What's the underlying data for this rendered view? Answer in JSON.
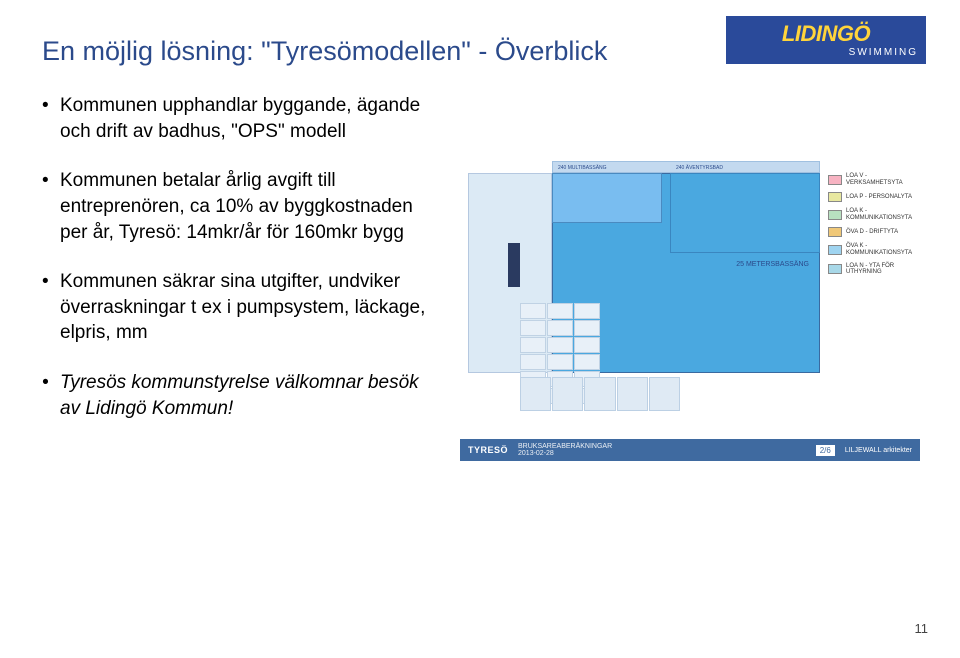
{
  "title": "En möjlig lösning: \"Tyresömodellen\" - Överblick",
  "logo": {
    "main": "LIDINGÖ",
    "sub": "SWIMMING"
  },
  "bullets": [
    {
      "text": "Kommunen upphandlar byggande, ägande och drift av badhus, \"OPS\" modell",
      "italic": false
    },
    {
      "text": "Kommunen betalar årlig avgift till entreprenören, ca 10% av byggkostnaden per år, Tyresö: 14mkr/år för 160mkr bygg",
      "italic": false
    },
    {
      "text": "Kommunen säkrar sina utgifter, undviker överraskningar t ex i pumpsystem, läckage, elpris, mm",
      "italic": false
    },
    {
      "text": "Tyresös kommunstyrelse välkomnar besök av Lidingö Kommun!",
      "italic": true
    }
  ],
  "floorplan": {
    "top_left_label": "240\nMULTIBASSÄNG",
    "top_right_label": "240\nÄVENTYRSBAD",
    "pool_label": "25 METERSBASSÄNG",
    "footer": {
      "project": "TYRESÖ",
      "doc": "BRUKSAREABERÄKNINGAR",
      "date": "2013-02-28",
      "page": "2/6",
      "architect": "LILJEWALL\narkitekter"
    },
    "legend": [
      {
        "color": "#f7b3c2",
        "label": "LOA V - VERKSAMHETSYTA"
      },
      {
        "color": "#e8e8a0",
        "label": "LOA P - PERSONALYTA"
      },
      {
        "color": "#b8e0c0",
        "label": "LOA K - KOMMUNIKATIONSYTA"
      },
      {
        "color": "#f0c878",
        "label": "ÖVA D - DRIFTYTA"
      },
      {
        "color": "#9fd4f0",
        "label": "ÖVA K - KOMMUNIKATIONSYTA"
      },
      {
        "color": "#a8d8e8",
        "label": "LOA N - YTA FÖR UTHYRNING"
      }
    ]
  },
  "page_number": "11"
}
